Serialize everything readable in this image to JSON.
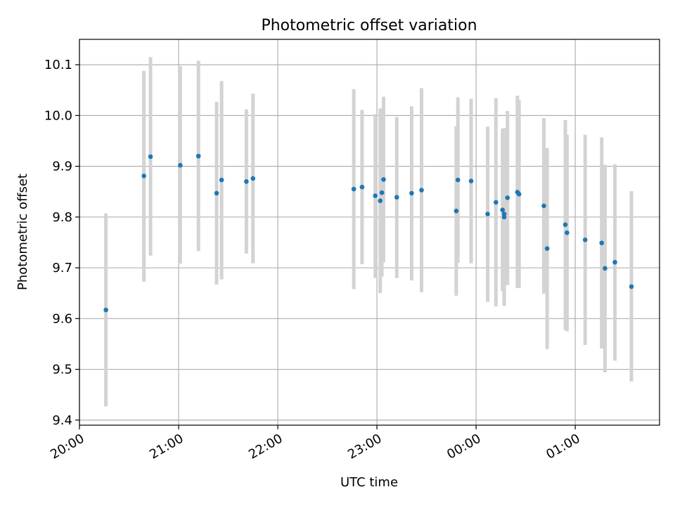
{
  "chart_data": {
    "type": "scatter",
    "title": "Photometric offset variation",
    "xlabel": "UTC time",
    "ylabel": "Photometric offset",
    "x_range_hours": [
      20.0,
      25.85
    ],
    "ylim": [
      9.39,
      10.15
    ],
    "grid": true,
    "x_ticks": [
      {
        "hour": 20,
        "label": "20:00"
      },
      {
        "hour": 21,
        "label": "21:00"
      },
      {
        "hour": 22,
        "label": "22:00"
      },
      {
        "hour": 23,
        "label": "23:00"
      },
      {
        "hour": 24,
        "label": "00:00"
      },
      {
        "hour": 25,
        "label": "01:00"
      }
    ],
    "y_ticks": [
      {
        "value": 9.4,
        "label": "9.4"
      },
      {
        "value": 9.5,
        "label": "9.5"
      },
      {
        "value": 9.6,
        "label": "9.6"
      },
      {
        "value": 9.7,
        "label": "9.7"
      },
      {
        "value": 9.8,
        "label": "9.8"
      },
      {
        "value": 9.9,
        "label": "9.9"
      },
      {
        "value": 10.0,
        "label": "10.0"
      },
      {
        "value": 10.1,
        "label": "10.1"
      }
    ],
    "marker_color": "#1f77b4",
    "errorbar_color": "#d3d3d3",
    "points": [
      {
        "time": "20:16",
        "y": 9.617,
        "ylow": 9.427,
        "yhigh": 9.807
      },
      {
        "time": "20:39",
        "y": 9.881,
        "ylow": 9.673,
        "yhigh": 10.088
      },
      {
        "time": "20:43",
        "y": 9.919,
        "ylow": 9.724,
        "yhigh": 10.115
      },
      {
        "time": "21:01",
        "y": 9.902,
        "ylow": 9.708,
        "yhigh": 10.097
      },
      {
        "time": "21:12",
        "y": 9.92,
        "ylow": 9.733,
        "yhigh": 10.108
      },
      {
        "time": "21:23",
        "y": 9.847,
        "ylow": 9.667,
        "yhigh": 10.027
      },
      {
        "time": "21:26",
        "y": 9.873,
        "ylow": 9.677,
        "yhigh": 10.068
      },
      {
        "time": "21:41",
        "y": 9.87,
        "ylow": 9.728,
        "yhigh": 10.012
      },
      {
        "time": "21:45",
        "y": 9.876,
        "ylow": 9.709,
        "yhigh": 10.043
      },
      {
        "time": "22:46",
        "y": 9.855,
        "ylow": 9.658,
        "yhigh": 10.052
      },
      {
        "time": "22:51",
        "y": 9.859,
        "ylow": 9.707,
        "yhigh": 10.011
      },
      {
        "time": "22:59",
        "y": 9.842,
        "ylow": 9.68,
        "yhigh": 10.003
      },
      {
        "time": "23:02",
        "y": 9.832,
        "ylow": 9.65,
        "yhigh": 10.014
      },
      {
        "time": "23:03",
        "y": 9.848,
        "ylow": 9.683,
        "yhigh": 10.013
      },
      {
        "time": "23:04",
        "y": 9.874,
        "ylow": 9.711,
        "yhigh": 10.037
      },
      {
        "time": "23:12",
        "y": 9.839,
        "ylow": 9.68,
        "yhigh": 9.997
      },
      {
        "time": "23:21",
        "y": 9.847,
        "ylow": 9.675,
        "yhigh": 10.018
      },
      {
        "time": "23:27",
        "y": 9.853,
        "ylow": 9.652,
        "yhigh": 10.054
      },
      {
        "time": "23:48",
        "y": 9.812,
        "ylow": 9.645,
        "yhigh": 9.979
      },
      {
        "time": "23:49",
        "y": 9.873,
        "ylow": 9.71,
        "yhigh": 10.036
      },
      {
        "time": "23:57",
        "y": 9.871,
        "ylow": 9.709,
        "yhigh": 10.033
      },
      {
        "time": "00:07",
        "y": 9.806,
        "ylow": 9.633,
        "yhigh": 9.978
      },
      {
        "time": "00:12",
        "y": 9.829,
        "ylow": 9.624,
        "yhigh": 10.034
      },
      {
        "time": "00:16",
        "y": 9.814,
        "ylow": 9.654,
        "yhigh": 9.974
      },
      {
        "time": "00:17",
        "y": 9.806,
        "ylow": 9.636,
        "yhigh": 9.975
      },
      {
        "time": "00:17",
        "y": 9.8,
        "ylow": 9.625,
        "yhigh": 9.974
      },
      {
        "time": "00:19",
        "y": 9.838,
        "ylow": 9.666,
        "yhigh": 10.009
      },
      {
        "time": "00:25",
        "y": 9.849,
        "ylow": 9.66,
        "yhigh": 10.039
      },
      {
        "time": "00:26",
        "y": 9.845,
        "ylow": 9.661,
        "yhigh": 10.03
      },
      {
        "time": "00:41",
        "y": 9.822,
        "ylow": 9.649,
        "yhigh": 9.995
      },
      {
        "time": "00:43",
        "y": 9.738,
        "ylow": 9.54,
        "yhigh": 9.936
      },
      {
        "time": "00:54",
        "y": 9.785,
        "ylow": 9.578,
        "yhigh": 9.991
      },
      {
        "time": "00:55",
        "y": 9.769,
        "ylow": 9.575,
        "yhigh": 9.962
      },
      {
        "time": "01:06",
        "y": 9.755,
        "ylow": 9.548,
        "yhigh": 9.962
      },
      {
        "time": "01:16",
        "y": 9.749,
        "ylow": 9.541,
        "yhigh": 9.957
      },
      {
        "time": "01:18",
        "y": 9.699,
        "ylow": 9.494,
        "yhigh": 9.903
      },
      {
        "time": "01:24",
        "y": 9.711,
        "ylow": 9.517,
        "yhigh": 9.904
      },
      {
        "time": "01:34",
        "y": 9.663,
        "ylow": 9.476,
        "yhigh": 9.851
      }
    ]
  }
}
